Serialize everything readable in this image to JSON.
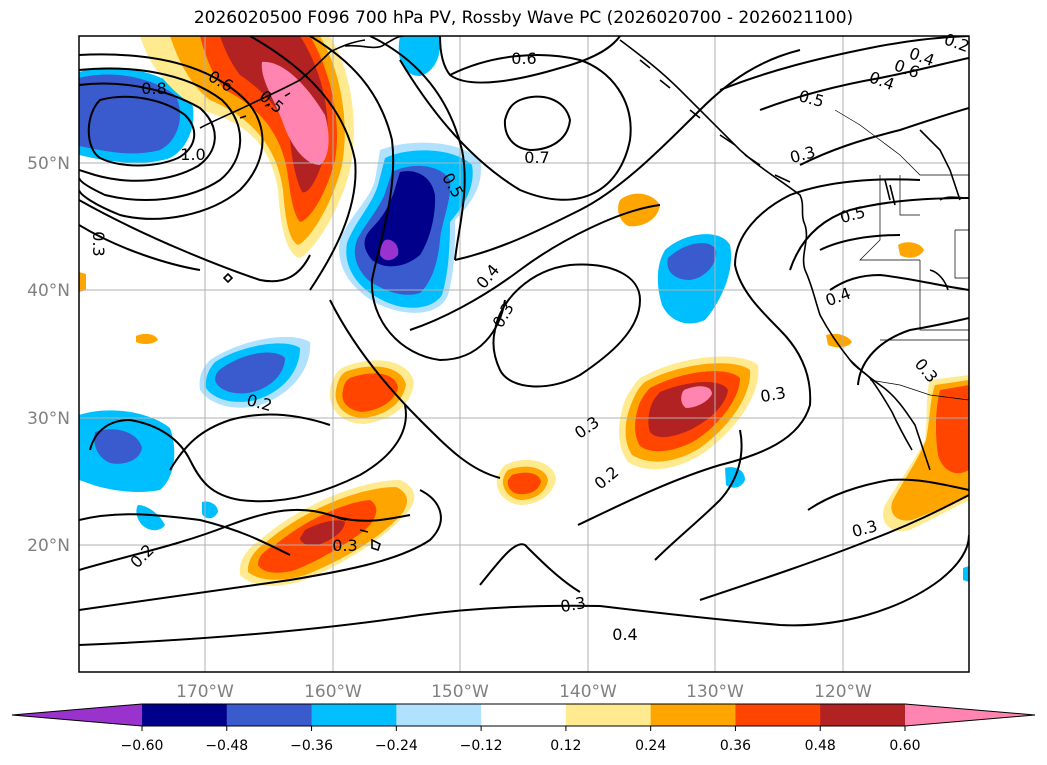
{
  "title": "2026020500 F096 700 hPa PV, Rossby Wave PC (2026020700 - 2026021100)",
  "lat_labels": [
    "50°N",
    "40°N",
    "30°N",
    "20°N"
  ],
  "lon_labels": [
    "170°W",
    "160°W",
    "150°W",
    "140°W",
    "130°W",
    "120°W"
  ],
  "colorbar": {
    "ticks": [
      "−0.60",
      "−0.48",
      "−0.36",
      "−0.24",
      "−0.12",
      "0.12",
      "0.24",
      "0.36",
      "0.48",
      "0.60"
    ],
    "colors": [
      "#9a32cd",
      "#00008b",
      "#3a5bcd",
      "#00bfff",
      "#b0e2ff",
      "#ffffff",
      "#ffea90",
      "#ffa500",
      "#ff4500",
      "#b22222",
      "#ff85b0",
      "#ff85b0"
    ]
  },
  "contour_labels": [
    "0.8",
    "0.6",
    "0.5",
    "1.0",
    "0.3",
    "0.6",
    "0.7",
    "0.5",
    "0.4",
    "0.3",
    "0.2",
    "0.3",
    "0.2",
    "0.3",
    "0.3",
    "0.2",
    "0.4",
    "0.3",
    "0.4",
    "0.5",
    "0.3",
    "0.5",
    "0.4",
    "0.6",
    "0.4",
    "0.2",
    "0.3",
    "0.3"
  ]
}
